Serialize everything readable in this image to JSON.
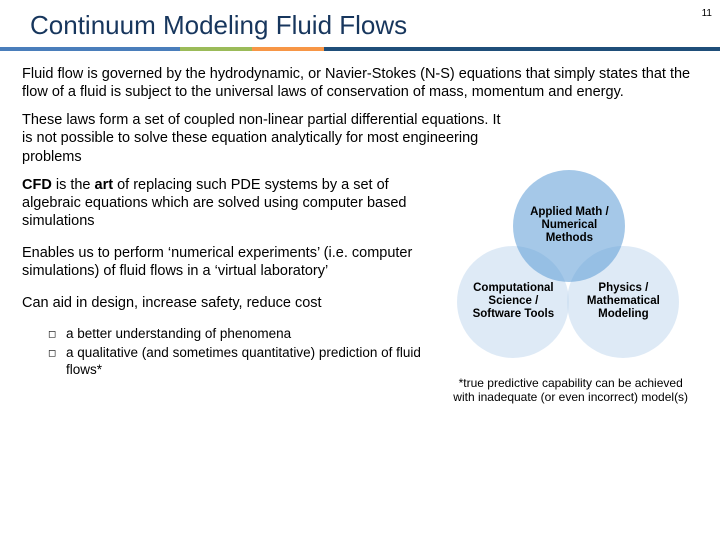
{
  "page_number": "11",
  "title": "Continuum Modeling Fluid Flows",
  "stripe_colors": [
    "#4a7ebb",
    "#9bbb59",
    "#f79646",
    "#1f4e79"
  ],
  "para1": "Fluid flow is governed by the hydrodynamic, or Navier-Stokes (N-S) equations that simply states that the flow of a fluid is subject to the universal laws of conservation of mass, momentum and energy.",
  "para2": "These laws form a set of coupled non-linear partial differential equations. It is not possible to solve these equation analytically for most engineering problems",
  "cfd": {
    "bold1": "CFD",
    "mid1": " is the ",
    "bold2": "art",
    "rest": " of replacing such PDE systems by a set of algebraic equations which are solved using computer based simulations"
  },
  "para4": "Enables us to perform ‘numerical experiments’ (i.e. computer simulations) of fluid flows in a ‘virtual laboratory’",
  "para5": "Can aid in design, increase safety, reduce cost",
  "bullets": [
    "a better understanding of phenomena",
    "a qualitative (and sometimes quantitative) prediction of fluid flows*"
  ],
  "venn": {
    "top": "Applied Math / Numerical Methods",
    "left": "Computational Science / Software Tools",
    "right": "Physics / Mathematical Modeling",
    "circle_fill_top": "rgba(91,155,213,0.55)",
    "circle_fill_side": "rgba(200,220,240,0.60)"
  },
  "footnote": "*true predictive capability can be achieved with inadequate (or even incorrect) model(s)"
}
